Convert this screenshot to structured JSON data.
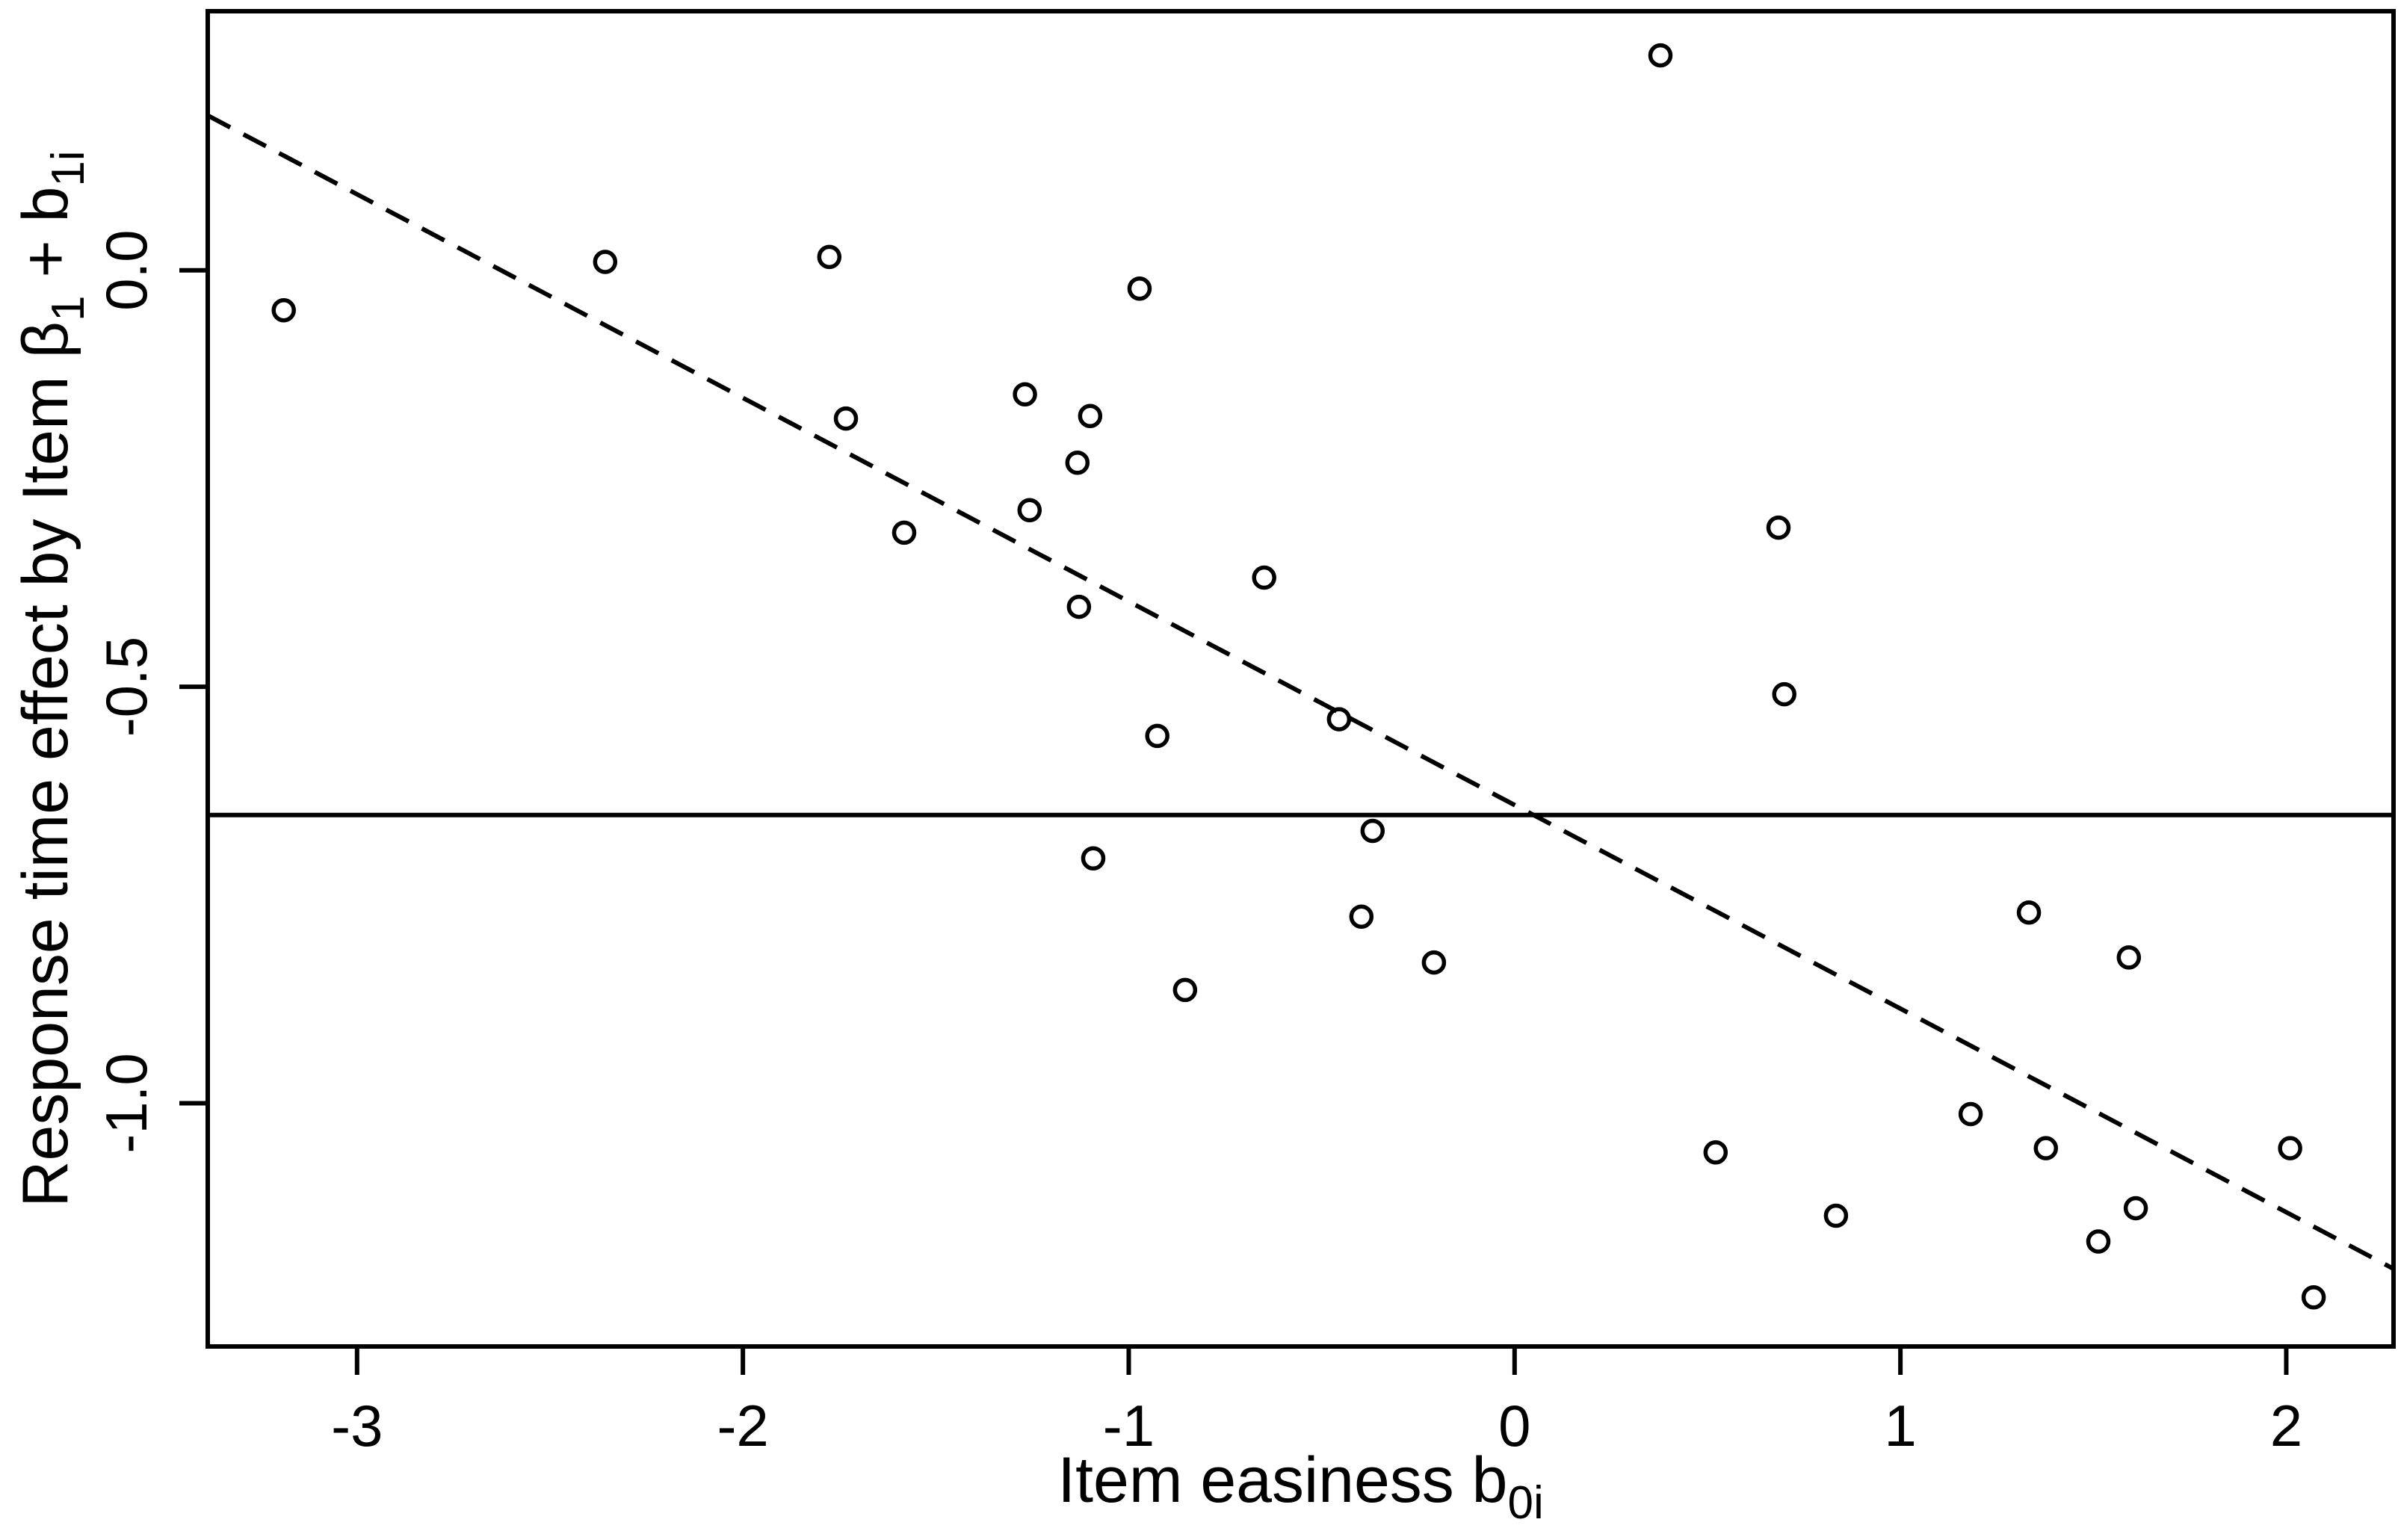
{
  "chart_data": {
    "type": "scatter",
    "title": "",
    "xlabel": {
      "plain": "Item easiness  b0i",
      "parts": [
        {
          "t": "Item easiness   ",
          "sub": false
        },
        {
          "t": "b",
          "sub": false
        },
        {
          "t": "0i",
          "sub": true
        }
      ]
    },
    "ylabel": {
      "plain": "Response time effect by Item  β1 + b1i",
      "parts": [
        {
          "t": "Response time effect by Item  ",
          "sub": false
        },
        {
          "t": "β",
          "sub": false
        },
        {
          "t": "1",
          "sub": true
        },
        {
          "t": " + ",
          "sub": false
        },
        {
          "t": "b",
          "sub": false
        },
        {
          "t": "1i",
          "sub": true
        }
      ]
    },
    "x_ticks": [
      {
        "label": "-3",
        "value": -3
      },
      {
        "label": "-2",
        "value": -2
      },
      {
        "label": "-1",
        "value": -1
      },
      {
        "label": "0",
        "value": 0
      },
      {
        "label": "1",
        "value": 1
      },
      {
        "label": "2",
        "value": 2
      }
    ],
    "y_ticks": [
      {
        "label": "0.0",
        "value": 0.0
      },
      {
        "label": "-0.5",
        "value": -0.5
      },
      {
        "label": "-1.0",
        "value": -1.0
      }
    ],
    "xlim": [
      -3.387,
      2.278
    ],
    "ylim": [
      -1.292,
      0.311
    ],
    "grid": false,
    "legend": "none",
    "marker": "open-circle",
    "horizontal_solid_line_y": -0.654,
    "dashed_regression_line": {
      "intercept": -0.642,
      "slope": -0.2444
    },
    "points": [
      [
        -3.19,
        -0.048
      ],
      [
        -2.357,
        0.01
      ],
      [
        -1.776,
        0.016
      ],
      [
        -1.733,
        -0.178
      ],
      [
        -1.582,
        -0.315
      ],
      [
        -1.269,
        -0.149
      ],
      [
        -1.257,
        -0.288
      ],
      [
        -1.133,
        -0.231
      ],
      [
        -1.1,
        -0.175
      ],
      [
        -0.972,
        -0.022
      ],
      [
        -1.129,
        -0.404
      ],
      [
        -0.649,
        -0.369
      ],
      [
        -0.926,
        -0.559
      ],
      [
        -0.455,
        -0.539
      ],
      [
        -1.092,
        -0.706
      ],
      [
        -0.368,
        -0.673
      ],
      [
        -0.397,
        -0.776
      ],
      [
        -0.209,
        -0.831
      ],
      [
        -0.854,
        -0.864
      ],
      [
        0.378,
        0.258
      ],
      [
        0.684,
        -0.309
      ],
      [
        0.699,
        -0.509
      ],
      [
        1.333,
        -0.771
      ],
      [
        1.592,
        -0.825
      ],
      [
        1.182,
        -1.013
      ],
      [
        1.377,
        -1.054
      ],
      [
        2.01,
        -1.054
      ],
      [
        0.521,
        -1.059
      ],
      [
        0.833,
        -1.135
      ],
      [
        1.61,
        -1.126
      ],
      [
        1.513,
        -1.166
      ],
      [
        2.071,
        -1.233
      ]
    ],
    "colors": {
      "foreground": "#000000",
      "background": "#ffffff"
    }
  }
}
